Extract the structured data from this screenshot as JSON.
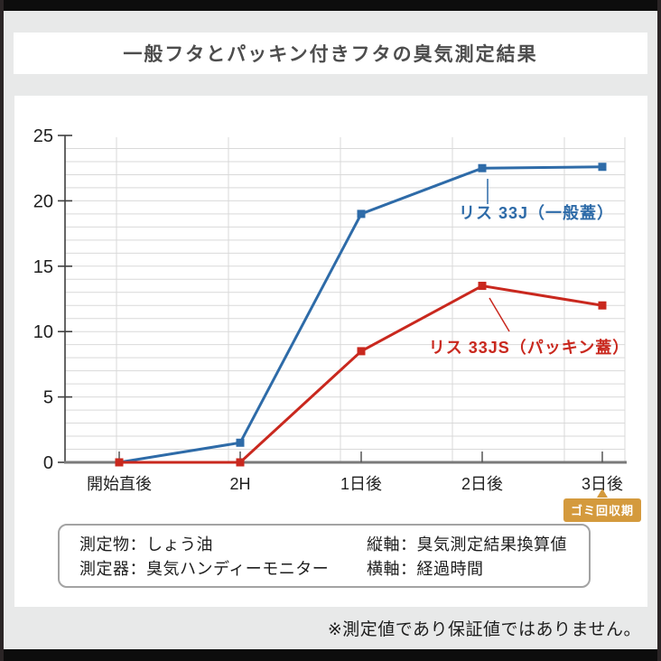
{
  "title": "一般フタとパッキン付きフタの臭気測定結果",
  "chart_data": {
    "type": "line",
    "categories": [
      "開始直後",
      "2H",
      "1日後",
      "2日後",
      "3日後"
    ],
    "series": [
      {
        "name": "リス 33J（一般蓋）",
        "color": "#2e6ba8",
        "values": [
          0,
          1.5,
          19,
          22.5,
          22.6
        ]
      },
      {
        "name": "リス 33JS（パッキン蓋）",
        "color": "#c9281e",
        "values": [
          0,
          0,
          8.5,
          13.5,
          12
        ]
      }
    ],
    "xlabel": "経過時間",
    "ylabel": "臭気測定結果換算値",
    "ylim": [
      0,
      25
    ],
    "y_ticks": [
      0,
      5,
      10,
      15,
      20,
      25
    ],
    "grid": {
      "horizontal_minor_step": 1,
      "vertical_per_category": true
    },
    "legend_position": "labels-near-lines",
    "annotation_badge": {
      "label": "ゴミ回収期",
      "category": "3日後",
      "color": "#d49a3d"
    }
  },
  "info_box": {
    "rows": [
      {
        "left": "測定物：しょう油",
        "right": "縦軸：臭気測定結果換算値"
      },
      {
        "left": "測定器：臭気ハンディーモニター",
        "right": "横軸：経過時間"
      }
    ]
  },
  "footnote": "※測定値であり保証値ではありません。"
}
